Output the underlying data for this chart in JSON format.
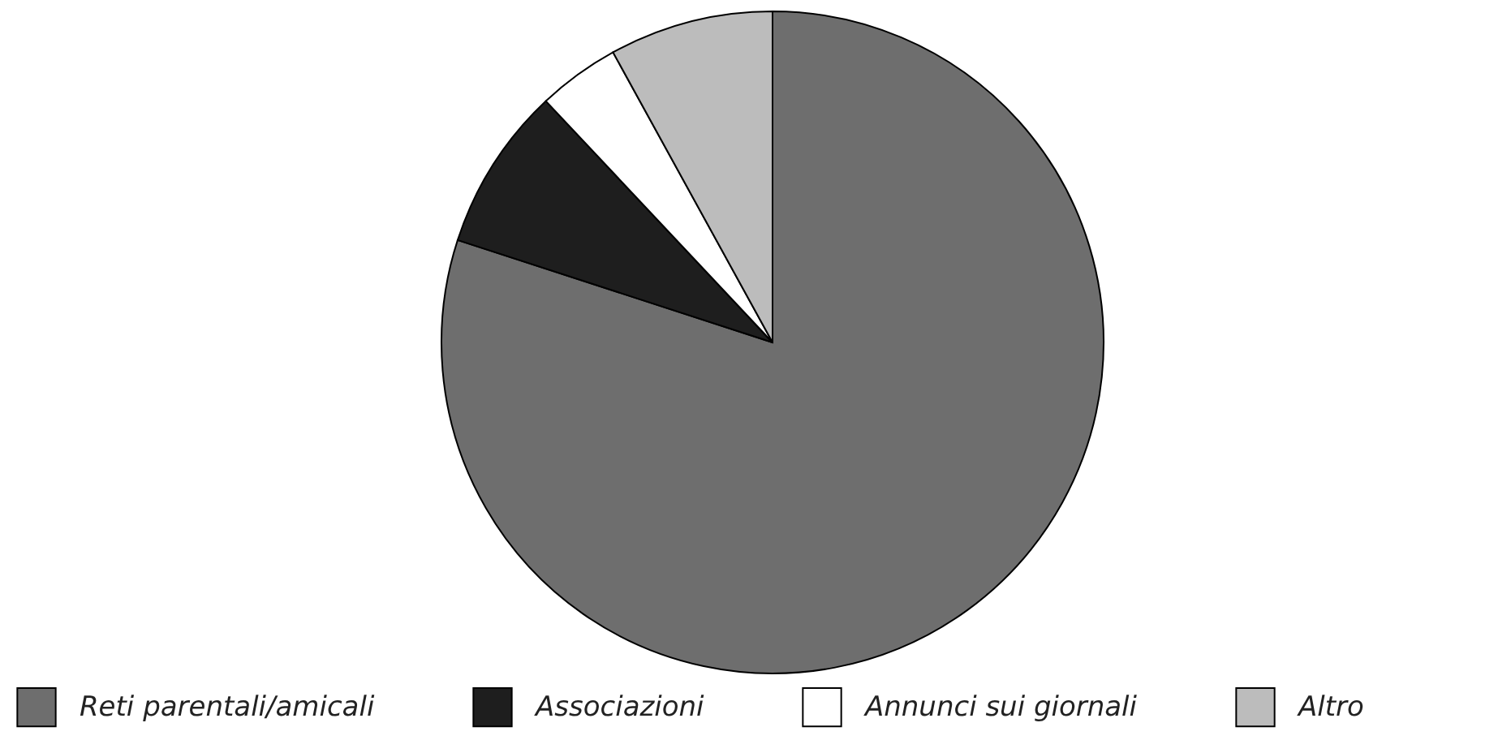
{
  "chart_data": {
    "type": "pie",
    "categories": [
      "Reti parentali/amicali",
      "Associazioni",
      "Annunci sui giornali",
      "Altro"
    ],
    "values": [
      80,
      8,
      4,
      8
    ],
    "colors": [
      "#6e6e6e",
      "#1e1e1e",
      "#ffffff",
      "#bcbcbc"
    ],
    "legend": "bottom"
  }
}
